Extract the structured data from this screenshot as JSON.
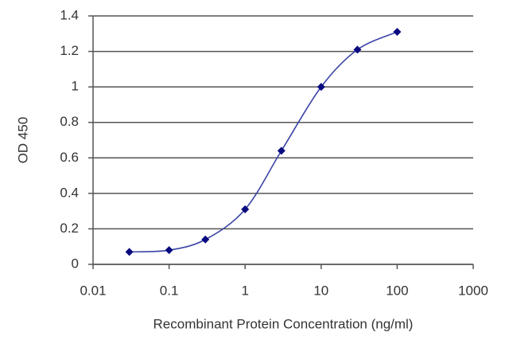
{
  "chart_data": {
    "type": "line",
    "x_label": "Recombinant Protein Concentration (ng/ml)",
    "y_label": "OD 450",
    "x": [
      0.03,
      0.1,
      0.3,
      1,
      3,
      10,
      30,
      100
    ],
    "series": [
      {
        "color": "#3a43a6",
        "marker_color": "#0a0a80",
        "values": [
          0.07,
          0.08,
          0.14,
          0.31,
          0.64,
          1.0,
          1.21,
          1.31
        ]
      }
    ],
    "xscale": "log",
    "xlim": [
      0.01,
      1000
    ],
    "xticks": [
      0.01,
      0.1,
      1,
      10,
      100,
      1000
    ],
    "ylim": [
      0,
      1.4
    ],
    "yticks": [
      0,
      0.2,
      0.4,
      0.6,
      0.8,
      1,
      1.2,
      1.4
    ],
    "grid": true
  }
}
